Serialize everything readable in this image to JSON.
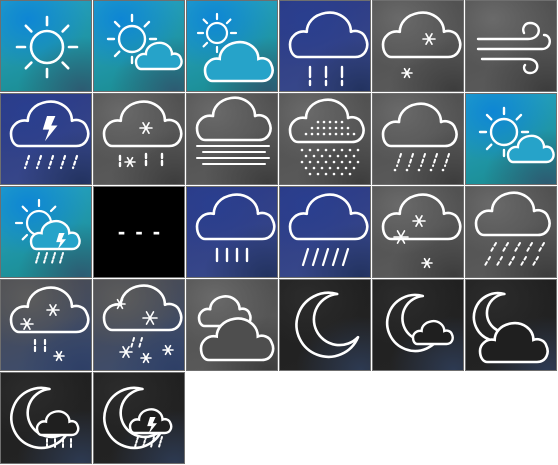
{
  "tiles": [
    {
      "icon": "clear-day-icon",
      "bg": "sky"
    },
    {
      "icon": "partly-cloudy-day-icon",
      "bg": "sky"
    },
    {
      "icon": "mostly-cloudy-day-icon",
      "bg": "sky"
    },
    {
      "icon": "cloudy-rain-icon",
      "bg": "navy"
    },
    {
      "icon": "cloudy-snow-icon",
      "bg": "gray"
    },
    {
      "icon": "windy-icon",
      "bg": "gray"
    },
    {
      "icon": "thunderstorm-icon",
      "bg": "navy"
    },
    {
      "icon": "cloudy-snow-rain-icon",
      "bg": "gray"
    },
    {
      "icon": "fog-icon",
      "bg": "gray"
    },
    {
      "icon": "hail-icon",
      "bg": "gray"
    },
    {
      "icon": "sleet-icon",
      "bg": "gray"
    },
    {
      "icon": "partly-cloudy-day-icon",
      "bg": "sky"
    },
    {
      "icon": "sun-thunderstorm-icon",
      "bg": "sky"
    },
    {
      "icon": "not-available-icon",
      "bg": "black",
      "caption": "- - -"
    },
    {
      "icon": "rain-icon",
      "bg": "navy"
    },
    {
      "icon": "heavy-rain-icon",
      "bg": "navy"
    },
    {
      "icon": "light-snow-icon",
      "bg": "gray"
    },
    {
      "icon": "windy-rain-icon",
      "bg": "gray"
    },
    {
      "icon": "snow-showers-icon",
      "bg": "slate"
    },
    {
      "icon": "heavy-snow-icon",
      "bg": "slate"
    },
    {
      "icon": "overcast-icon",
      "bg": "gray"
    },
    {
      "icon": "clear-night-icon",
      "bg": "dark"
    },
    {
      "icon": "partly-cloudy-night-icon",
      "bg": "dark"
    },
    {
      "icon": "mostly-cloudy-night-icon",
      "bg": "dark"
    },
    {
      "icon": "night-rain-icon",
      "bg": "dark"
    },
    {
      "icon": "night-thunderstorm-icon",
      "bg": "dark"
    }
  ],
  "colors": {
    "stroke": "#ffffff",
    "bolt": "#ffffff",
    "grid_border": "#6f6f6f",
    "sky": [
      "#0e86d4",
      "#26a3c9",
      "#1a8a8a",
      "#2d5b72"
    ],
    "navy": [
      "#2a3f8f",
      "#2b3a86",
      "#3a4a8a",
      "#22325f"
    ],
    "gray": [
      "#6a6a6a",
      "#4e4e4e",
      "#5c5c5c",
      "#3c3c3c"
    ],
    "slate": [
      "#5c5c5c",
      "#4b4b50",
      "#3c4d70",
      "#2e3f66"
    ],
    "dark": [
      "#2c2c2c",
      "#1f1f1f",
      "#242424",
      "#2d3a52"
    ],
    "black": [
      "#000000",
      "#000000",
      "#000000",
      "#000000"
    ]
  }
}
